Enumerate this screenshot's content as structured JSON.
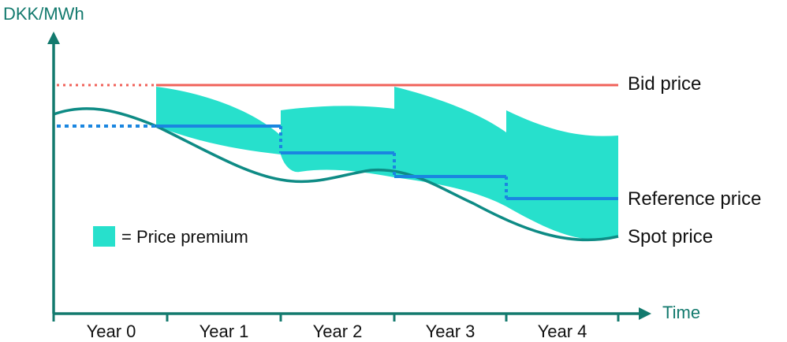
{
  "y_axis_label": "DKK/MWh",
  "x_axis_label": "Time",
  "labels": {
    "bid_price": "Bid price",
    "reference_price": "Reference price",
    "spot_price": "Spot price"
  },
  "legend": {
    "text": "= Price premium"
  },
  "years": [
    "Year 0",
    "Year 1",
    "Year 2",
    "Year 3",
    "Year 4"
  ],
  "colors": {
    "axis": "#137a6e",
    "bid_price": "#f0625a",
    "reference_price": "#1a86e0",
    "spot_price": "#0e8b85",
    "premium_fill": "#27e0cc"
  }
}
